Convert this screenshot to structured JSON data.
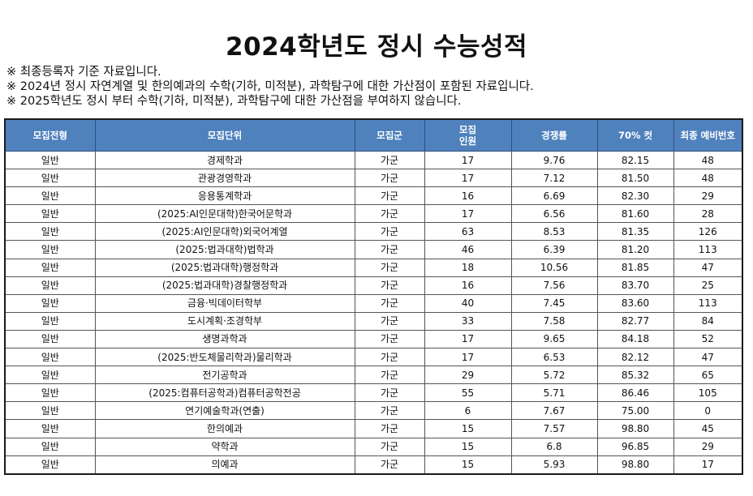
{
  "title": "2024학년도 정시 수능성적",
  "notes": [
    "※ 최종등록자 기준 자료입니다.",
    "※ 2024년 정시 자연계열 및 한의예과의 수학(기하, 미적분), 과학탐구에 대한 가산점이 포함된 자료입니다.",
    "※ 2025학년도 정시 부터 수학(기하, 미적분), 과학탐구에 대한 가산점을 부여하지 않습니다."
  ],
  "table": {
    "headers": [
      "모집전형",
      "모집단위",
      "모집군",
      "모집\n인원",
      "경쟁률",
      "70% 컷",
      "최종 예비번호"
    ],
    "rows": [
      [
        "일반",
        "경제학과",
        "가군",
        "17",
        "9.76",
        "82.15",
        "48"
      ],
      [
        "일반",
        "관광경영학과",
        "가군",
        "17",
        "7.12",
        "81.50",
        "48"
      ],
      [
        "일반",
        "응용통계학과",
        "가군",
        "16",
        "6.69",
        "82.30",
        "29"
      ],
      [
        "일반",
        "(2025:AI인문대학)한국어문학과",
        "가군",
        "17",
        "6.56",
        "81.60",
        "28"
      ],
      [
        "일반",
        "(2025:AI인문대학)외국어계열",
        "가군",
        "63",
        "8.53",
        "81.35",
        "126"
      ],
      [
        "일반",
        "(2025:법과대학)법학과",
        "가군",
        "46",
        "6.39",
        "81.20",
        "113"
      ],
      [
        "일반",
        "(2025:법과대학)행정학과",
        "가군",
        "18",
        "10.56",
        "81.85",
        "47"
      ],
      [
        "일반",
        "(2025:법과대학)경찰행정학과",
        "가군",
        "16",
        "7.56",
        "83.70",
        "25"
      ],
      [
        "일반",
        "금융·빅데이터학부",
        "가군",
        "40",
        "7.45",
        "83.60",
        "113"
      ],
      [
        "일반",
        "도시계획·조경학부",
        "가군",
        "33",
        "7.58",
        "82.77",
        "84"
      ],
      [
        "일반",
        "생명과학과",
        "가군",
        "17",
        "9.65",
        "84.18",
        "52"
      ],
      [
        "일반",
        "(2025:반도체물리학과)물리학과",
        "가군",
        "17",
        "6.53",
        "82.12",
        "47"
      ],
      [
        "일반",
        "전기공학과",
        "가군",
        "29",
        "5.72",
        "85.32",
        "65"
      ],
      [
        "일반",
        "(2025:컴퓨터공학과)컴퓨터공학전공",
        "가군",
        "55",
        "5.71",
        "86.46",
        "105"
      ],
      [
        "일반",
        "연기예술학과(연출)",
        "가군",
        "6",
        "7.67",
        "75.00",
        "0"
      ],
      [
        "일반",
        "한의예과",
        "가군",
        "15",
        "7.57",
        "98.80",
        "45"
      ],
      [
        "일반",
        "약학과",
        "가군",
        "15",
        "6.8",
        "96.85",
        "29"
      ],
      [
        "일반",
        "의예과",
        "가군",
        "15",
        "5.93",
        "98.80",
        "17"
      ]
    ]
  },
  "colors": {
    "header_bg": "#4f81bd",
    "header_text": "#ffffff"
  }
}
